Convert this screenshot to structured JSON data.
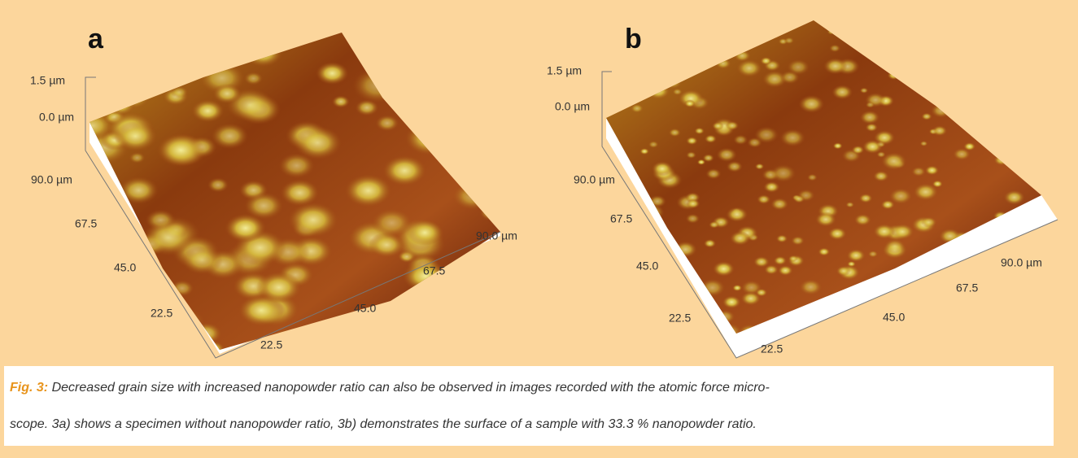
{
  "panels": [
    {
      "label": "a",
      "z_ticks": [
        "1.5 µm",
        "0.0 µm"
      ],
      "y_ticks": [
        "90.0 µm",
        "67.5",
        "45.0",
        "22.5"
      ],
      "x_ticks": [
        "22.5",
        "45.0",
        "67.5",
        "90.0 µm"
      ]
    },
    {
      "label": "b",
      "z_ticks": [
        "1.5 µm",
        "0.0 µm"
      ],
      "y_ticks": [
        "90.0 µm",
        "67.5",
        "45.0",
        "22.5"
      ],
      "x_ticks": [
        "22.5",
        "45.0",
        "67.5",
        "90.0 µm"
      ]
    }
  ],
  "caption": {
    "label": "Fig. 3:",
    "lines": [
      "Decreased grain size with increased nanopowder ratio can also be observed in images recorded with the atomic force micro-",
      "scope. 3a) shows a specimen without nanopowder ratio, 3b) demonstrates the surface of a sample with 33.3 % nanopowder ratio."
    ]
  }
}
